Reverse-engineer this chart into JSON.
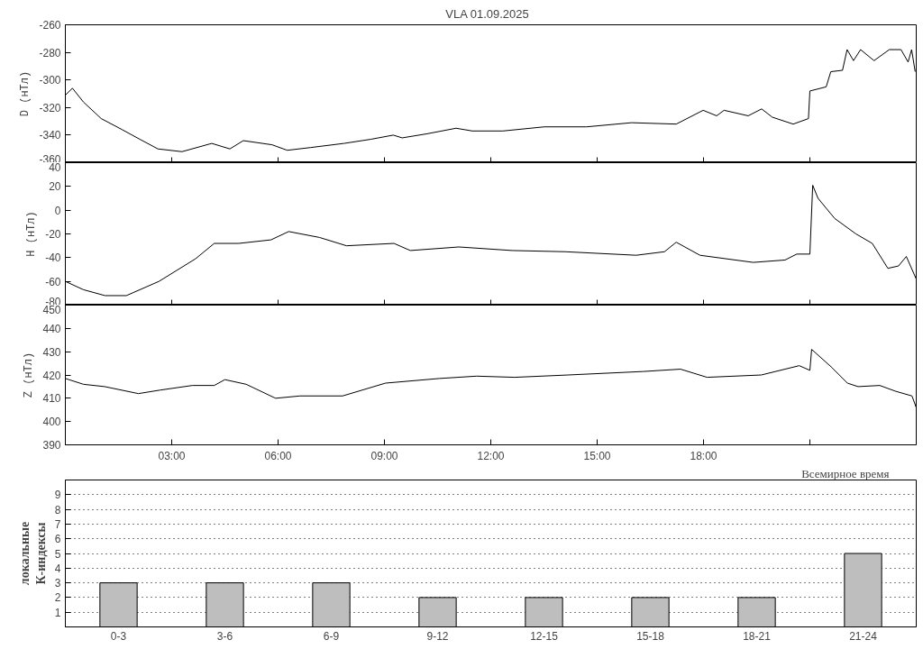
{
  "chart_data": [
    {
      "type": "line",
      "title": "VLA   01.09.2025",
      "ylabel": "D (нТл)",
      "tick_labels": "y",
      "xlim": [
        0,
        24
      ],
      "xticks": [
        {
          "value": 3,
          "label": null
        },
        {
          "value": 6,
          "label": null
        },
        {
          "value": 9,
          "label": null
        },
        {
          "value": 12,
          "label": null
        },
        {
          "value": 15,
          "label": null
        },
        {
          "value": 18,
          "label": null
        },
        {
          "value": 21,
          "label": null
        }
      ],
      "ylim": [
        -360,
        -260
      ],
      "yticks": [
        -360,
        -340,
        -320,
        -300,
        -280,
        -260
      ],
      "color": "#000000",
      "x": [
        0,
        0.2,
        0.51,
        1.01,
        1.6,
        2.1,
        2.61,
        3.29,
        4.13,
        4.64,
        5.02,
        5.83,
        6.26,
        6.92,
        7.86,
        8.62,
        9.25,
        9.5,
        10.21,
        11.02,
        11.48,
        12.34,
        13.51,
        14.7,
        15.97,
        17.23,
        17.99,
        18.37,
        18.58,
        19.26,
        19.64,
        19.94,
        20.53,
        20.96,
        21.0,
        21.46,
        21.59,
        21.92,
        22.05,
        22.23,
        22.43,
        22.81,
        23.24,
        23.57,
        23.77,
        23.87,
        23.97
      ],
      "values": [
        -311,
        -306,
        -316,
        -328,
        -336,
        -343,
        -350,
        -352,
        -346,
        -350,
        -344,
        -347,
        -351,
        -349,
        -346,
        -343,
        -340,
        -342,
        -339,
        -335,
        -337,
        -337,
        -334,
        -334,
        -331,
        -332,
        -322,
        -326,
        -322,
        -326,
        -321,
        -327,
        -332,
        -328,
        -308,
        -305,
        -294,
        -293,
        -278,
        -286,
        -278,
        -286,
        -278,
        -278,
        -287,
        -278,
        -294
      ]
    },
    {
      "type": "line",
      "ylabel": "H (нТл)",
      "tick_labels": "y",
      "xlim": [
        0,
        24
      ],
      "xticks": [
        {
          "value": 3,
          "label": null
        },
        {
          "value": 6,
          "label": null
        },
        {
          "value": 9,
          "label": null
        },
        {
          "value": 12,
          "label": null
        },
        {
          "value": 15,
          "label": null
        },
        {
          "value": 18,
          "label": null
        },
        {
          "value": 21,
          "label": null
        }
      ],
      "ylim": [
        -80,
        40
      ],
      "yticks": [
        -80,
        -60,
        -40,
        -20,
        0,
        20,
        40
      ],
      "color": "#000000",
      "x": [
        0,
        0.51,
        1.12,
        1.72,
        2.64,
        3.67,
        4.2,
        4.89,
        5.8,
        6.3,
        7.17,
        7.93,
        9.27,
        9.73,
        11.1,
        12.6,
        14.1,
        16.1,
        16.9,
        17.23,
        17.9,
        19.4,
        20.3,
        20.63,
        21.0,
        21.08,
        21.23,
        21.7,
        22.3,
        22.76,
        23.2,
        23.5,
        23.72,
        24.0
      ],
      "values": [
        -60,
        -67,
        -72,
        -72,
        -60,
        -41,
        -28,
        -28,
        -25,
        -18,
        -23,
        -30,
        -28,
        -34,
        -31,
        -34,
        -35,
        -38,
        -35,
        -27,
        -38,
        -44,
        -42,
        -37,
        -37,
        21,
        10,
        -7,
        -20,
        -28,
        -49,
        -47,
        -39,
        -58
      ]
    },
    {
      "type": "line",
      "ylabel": "Z (нТл)",
      "xlabel": "Всемирное время",
      "xlim": [
        0,
        24
      ],
      "xticks": [
        {
          "value": 3,
          "label": "03:00"
        },
        {
          "value": 6,
          "label": "06:00"
        },
        {
          "value": 9,
          "label": "09:00"
        },
        {
          "value": 12,
          "label": "12:00"
        },
        {
          "value": 15,
          "label": "15:00"
        },
        {
          "value": 18,
          "label": "18:00"
        },
        {
          "value": 21,
          "label": null
        }
      ],
      "ylim": [
        390,
        450
      ],
      "yticks": [
        390,
        400,
        410,
        420,
        430,
        440,
        450
      ],
      "color": "#000000",
      "x": [
        0,
        0.51,
        1.11,
        2.06,
        2.67,
        3.58,
        4.2,
        4.5,
        5.1,
        5.93,
        6.62,
        7.82,
        9.03,
        10.55,
        11.6,
        12.67,
        14.18,
        16.3,
        17.35,
        18.1,
        19.63,
        20.7,
        21.0,
        21.05,
        21.6,
        22.06,
        22.36,
        22.97,
        23.42,
        23.88,
        24.0
      ],
      "values": [
        418.5,
        416,
        415,
        412,
        413.5,
        415.5,
        415.5,
        418,
        416,
        410,
        411,
        411,
        416.5,
        418.5,
        419.5,
        419,
        420,
        421.5,
        422.5,
        419,
        420,
        424,
        422,
        431,
        423.5,
        416.5,
        415,
        415.5,
        413,
        411,
        406
      ]
    },
    {
      "type": "bar",
      "ylabel": "локальные\nК-индексы",
      "categories": [
        "0-3",
        "3-6",
        "6-9",
        "9-12",
        "12-15",
        "15-18",
        "18-21",
        "21-24"
      ],
      "values": [
        3,
        3,
        3,
        2,
        2,
        2,
        2,
        5
      ],
      "color": "#bebebe",
      "ylim": [
        0,
        10
      ],
      "yticks": [
        1,
        2,
        3,
        4,
        5,
        6,
        7,
        8,
        9
      ],
      "grid": "y"
    }
  ]
}
